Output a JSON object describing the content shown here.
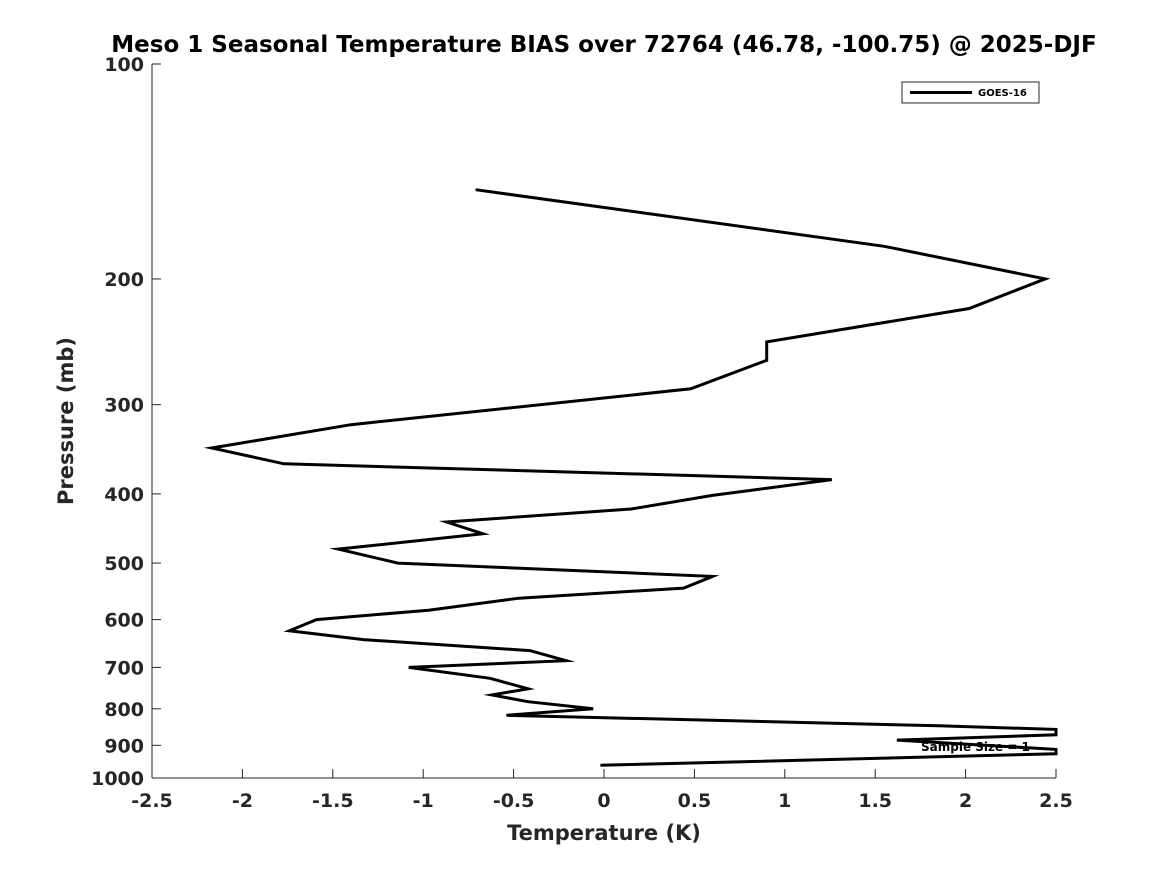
{
  "chart_data": {
    "type": "line",
    "title": "Meso 1 Seasonal Temperature BIAS over 72764 (46.78, -100.75) @ 2025-DJF",
    "xlabel": "Temperature (K)",
    "ylabel": "Pressure (mb)",
    "xlim": [
      -2.5,
      2.5
    ],
    "ylim": [
      100,
      1000
    ],
    "y_scale": "log",
    "y_reversed": true,
    "x_ticks": [
      -2.5,
      -2,
      -1.5,
      -1,
      -0.5,
      0,
      0.5,
      1,
      1.5,
      2,
      2.5
    ],
    "x_tick_labels": [
      "-2.5",
      "-2",
      "-1.5",
      "-1",
      "-0.5",
      "0",
      "0.5",
      "1",
      "1.5",
      "2",
      "2.5"
    ],
    "y_ticks": [
      100,
      200,
      300,
      400,
      500,
      600,
      700,
      800,
      900,
      1000
    ],
    "y_tick_labels": [
      "100",
      "200",
      "300",
      "400",
      "500",
      "600",
      "700",
      "800",
      "900",
      "1000"
    ],
    "grid": false,
    "legend_position": "top-right",
    "annotation": "Sample Size = 1",
    "series": [
      {
        "name": "GOES-16",
        "color": "#000000",
        "points": [
          {
            "x": -0.71,
            "p": 150
          },
          {
            "x": 1.55,
            "p": 180
          },
          {
            "x": 2.44,
            "p": 200
          },
          {
            "x": 2.02,
            "p": 220
          },
          {
            "x": 0.9,
            "p": 245
          },
          {
            "x": 0.9,
            "p": 260
          },
          {
            "x": 0.48,
            "p": 285
          },
          {
            "x": -1.4,
            "p": 320
          },
          {
            "x": -2.17,
            "p": 345
          },
          {
            "x": -1.77,
            "p": 363
          },
          {
            "x": 1.26,
            "p": 382
          },
          {
            "x": 0.6,
            "p": 402
          },
          {
            "x": 0.15,
            "p": 420
          },
          {
            "x": -0.87,
            "p": 438
          },
          {
            "x": -0.67,
            "p": 455
          },
          {
            "x": -1.47,
            "p": 478
          },
          {
            "x": -1.14,
            "p": 500
          },
          {
            "x": 0.6,
            "p": 522
          },
          {
            "x": 0.44,
            "p": 542
          },
          {
            "x": -0.47,
            "p": 560
          },
          {
            "x": -0.97,
            "p": 582
          },
          {
            "x": -1.59,
            "p": 600
          },
          {
            "x": -1.74,
            "p": 622
          },
          {
            "x": -1.33,
            "p": 640
          },
          {
            "x": -0.41,
            "p": 663
          },
          {
            "x": -0.21,
            "p": 685
          },
          {
            "x": -1.08,
            "p": 700
          },
          {
            "x": -0.63,
            "p": 725
          },
          {
            "x": -0.42,
            "p": 750
          },
          {
            "x": -0.62,
            "p": 765
          },
          {
            "x": -0.42,
            "p": 782
          },
          {
            "x": -0.06,
            "p": 800
          },
          {
            "x": -0.54,
            "p": 817
          },
          {
            "x": 1.85,
            "p": 845
          },
          {
            "x": 2.5,
            "p": 855
          },
          {
            "x": 2.5,
            "p": 870
          },
          {
            "x": 1.62,
            "p": 885
          },
          {
            "x": 2.5,
            "p": 912
          },
          {
            "x": 2.5,
            "p": 925
          },
          {
            "x": -0.02,
            "p": 960
          }
        ]
      }
    ]
  }
}
